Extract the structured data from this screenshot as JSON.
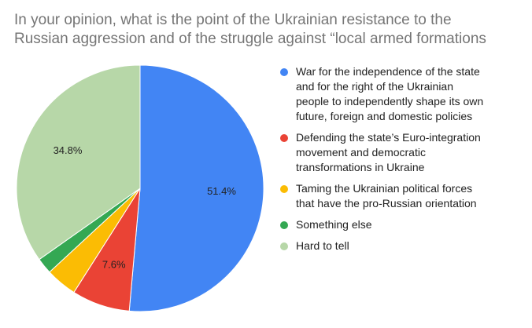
{
  "chart_data": {
    "type": "pie",
    "title_lines": [
      "In your opinion, what is the point of the Ukrainian resistance to the",
      "Russian aggression and of the struggle against “local armed formations"
    ],
    "slices": [
      {
        "label": "War for the independence of the state and for the right of the Ukrainian people to independently shape its own future, foreign and domestic policies",
        "legend_lines": [
          "War for the independence of the state",
          "and for the right of the Ukrainian",
          "people to independently shape its own",
          "future, foreign and domestic policies"
        ],
        "value": 51.4,
        "data_label": "51.4%",
        "color": "#4285f4"
      },
      {
        "label": "Defending the state’s Euro-integration movement and democratic transformations in Ukraine",
        "legend_lines": [
          "Defending the state’s Euro-integration",
          "movement and democratic",
          "transformations in Ukraine"
        ],
        "value": 7.6,
        "data_label": "7.6%",
        "color": "#ea4335"
      },
      {
        "label": "Taming the Ukrainian political forces that have the pro-Russian orientation",
        "legend_lines": [
          "Taming the Ukrainian political forces",
          "that have the pro-Russian orientation"
        ],
        "value": 4.1,
        "data_label": "",
        "color": "#fbbc04"
      },
      {
        "label": "Something else",
        "legend_lines": [
          "Something else"
        ],
        "value": 2.1,
        "data_label": "",
        "color": "#34a853"
      },
      {
        "label": "Hard to tell",
        "legend_lines": [
          "Hard to tell"
        ],
        "value": 34.8,
        "data_label": "34.8%",
        "color": "#b7d7a8"
      }
    ],
    "legend_position": "right"
  }
}
